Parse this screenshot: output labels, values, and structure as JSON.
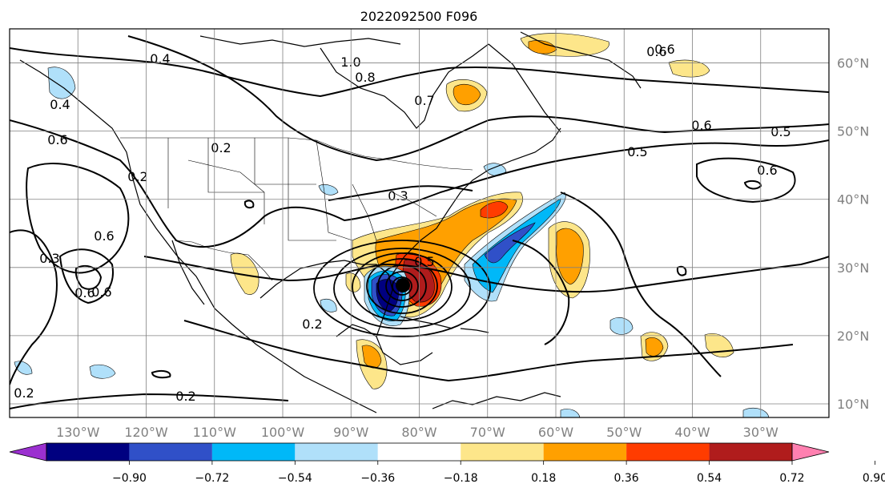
{
  "title": "2022092500 F096",
  "map": {
    "projection": "cylindrical",
    "lon_range": [
      -140,
      -20
    ],
    "lat_range": [
      8,
      65
    ],
    "gridlines": true
  },
  "axes": {
    "lon_ticks": [
      "130°W",
      "120°W",
      "110°W",
      "100°W",
      "90°W",
      "80°W",
      "70°W",
      "60°W",
      "50°W",
      "40°W",
      "30°W"
    ],
    "lat_ticks": [
      "60°N",
      "50°N",
      "40°N",
      "30°N",
      "20°N",
      "10°N"
    ]
  },
  "colorbar": {
    "orientation": "horizontal",
    "extend": "both",
    "tick_labels": [
      "−0.90",
      "−0.72",
      "−0.54",
      "−0.36",
      "−0.18",
      "0.18",
      "0.36",
      "0.54",
      "0.72",
      "0.90"
    ],
    "colors": [
      "#9b30d0",
      "#000080",
      "#3050c8",
      "#00b8f8",
      "#b0e0fa",
      "#ffffff",
      "#fde68a",
      "#ffa000",
      "#ff3c00",
      "#b01c1c",
      "#ff80b0"
    ]
  },
  "contour_labels": [
    "0.4",
    "1.0",
    "0.8",
    "0.7",
    "0.6",
    "0.6",
    "0.5",
    "0.5",
    "0.6",
    "0.2",
    "0.6",
    "0.2",
    "0.3",
    "0.6",
    "0.3",
    "0.6",
    "0.6",
    "0.5",
    "0.2",
    "0.2",
    "0.2",
    "0.6",
    "0.4"
  ],
  "storm_marker": "hurricane center"
}
